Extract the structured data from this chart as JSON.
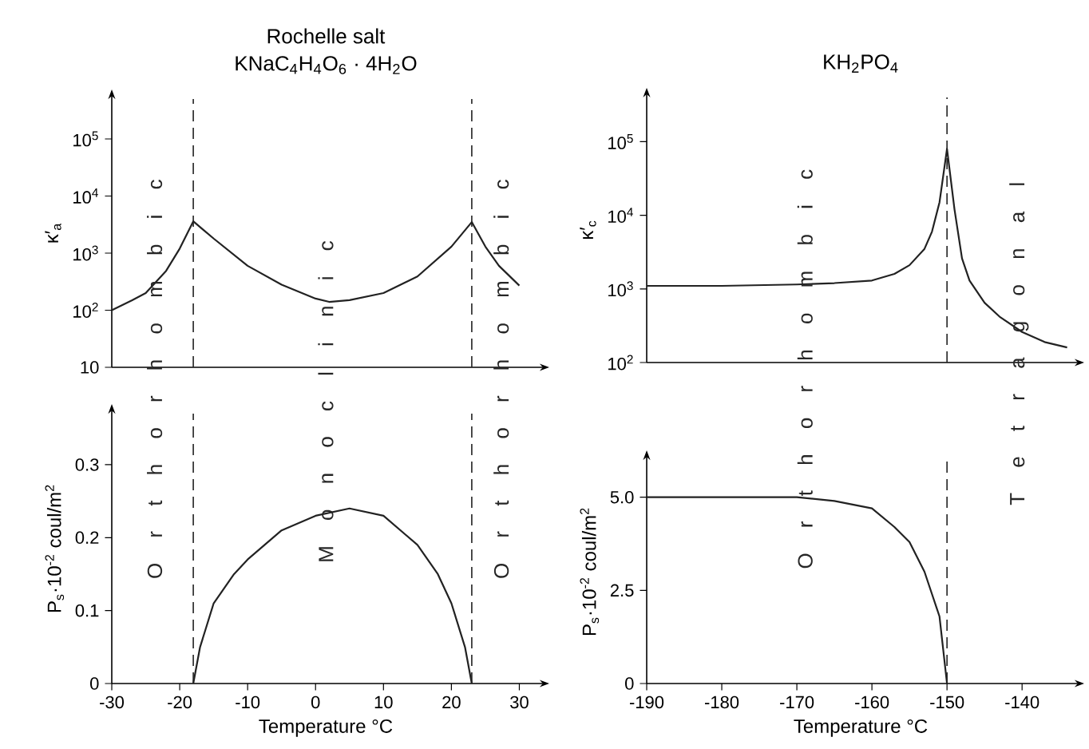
{
  "chart_data": [
    {
      "type": "line",
      "title": "Rochelle salt",
      "subtitle": "KNaC$_{4}$H$_{4}$O$_{6}$ · 4H$_{2}$O",
      "ylabel": "κ′$_{a}$",
      "log": "y",
      "tick_labels": "y",
      "x": [
        -30,
        -27,
        -25,
        -22,
        -20,
        -18,
        -15,
        -10,
        -5,
        0,
        2,
        5,
        10,
        15,
        20,
        23,
        25,
        27,
        30
      ],
      "series": [
        {
          "color": "#222222",
          "values": [
            100,
            150,
            200,
            490,
            1200,
            3600,
            1800,
            600,
            280,
            160,
            140,
            150,
            200,
            390,
            1300,
            3500,
            1300,
            600,
            270
          ]
        }
      ],
      "xlim": [
        -30,
        33
      ],
      "ylim": [
        10,
        500000
      ],
      "yticks": [
        10,
        {
          "value": 100,
          "label": "10$^{2}$"
        },
        {
          "value": 1000,
          "label": "10$^{3}$"
        },
        {
          "value": 10000,
          "label": "10$^{4}$"
        },
        {
          "value": 100000,
          "label": "10$^{5}$"
        }
      ],
      "ref_lines": [
        {
          "axis": "x",
          "value": -18,
          "color": "#222222",
          "line_style": "dashed"
        },
        {
          "axis": "x",
          "value": 23,
          "color": "#222222",
          "line_style": "dashed"
        }
      ],
      "annotations": [
        "O r t h o r h o m b i c",
        "M o n o c l i n i c",
        "O r t h o r h o m b i c"
      ]
    },
    {
      "type": "line",
      "title": "KH$_{2}$PO$_{4}$",
      "ylabel": "κ′$_{c}$",
      "log": "y",
      "tick_labels": "y",
      "x": [
        -190,
        -180,
        -170,
        -165,
        -160,
        -157,
        -155,
        -153,
        -152,
        -151,
        -150,
        -149,
        -148,
        -147,
        -145,
        -143,
        -140,
        -137,
        -134
      ],
      "series": [
        {
          "color": "#222222",
          "values": [
            1100,
            1100,
            1150,
            1200,
            1300,
            1600,
            2100,
            3500,
            6000,
            15000,
            80000,
            12000,
            2600,
            1300,
            650,
            420,
            260,
            190,
            160
          ]
        }
      ],
      "xlim": [
        -190,
        -133
      ],
      "ylim": [
        100,
        400000
      ],
      "yticks": [
        {
          "value": 100,
          "label": "10$^{2}$"
        },
        {
          "value": 1000,
          "label": "10$^{3}$"
        },
        {
          "value": 10000,
          "label": "10$^{4}$"
        },
        {
          "value": 100000,
          "label": "10$^{5}$"
        }
      ],
      "ref_lines": [
        {
          "axis": "x",
          "value": -150,
          "color": "#222222",
          "line_style": "dashed"
        }
      ],
      "annotations": [
        "O r t h o r h o m b i c",
        "T e t r a g o n a l"
      ]
    },
    {
      "type": "line",
      "xlabel": "Temperature °C",
      "ylabel": "P$_{s}$·10$^{-2}$ coul/m$^{2}$",
      "x": [
        -18,
        -17,
        -15,
        -12,
        -10,
        -5,
        0,
        5,
        10,
        15,
        18,
        20,
        22,
        23
      ],
      "series": [
        {
          "color": "#222222",
          "values": [
            0,
            0.05,
            0.11,
            0.15,
            0.17,
            0.21,
            0.23,
            0.24,
            0.23,
            0.19,
            0.15,
            0.11,
            0.05,
            0
          ]
        }
      ],
      "xlim": [
        -30,
        33
      ],
      "ylim": [
        0,
        0.37
      ],
      "xticks": [
        -30,
        -20,
        -10,
        0,
        10,
        20,
        30
      ],
      "yticks": [
        0,
        0.1,
        0.2,
        0.3
      ],
      "ref_lines": [
        {
          "axis": "x",
          "value": -18,
          "color": "#222222",
          "line_style": "dashed"
        },
        {
          "axis": "x",
          "value": 23,
          "color": "#222222",
          "line_style": "dashed"
        }
      ]
    },
    {
      "type": "line",
      "xlabel": "Temperature °C",
      "ylabel": "P$_{s}$·10$^{-2}$ coul/m$^{2}$",
      "x": [
        -190,
        -180,
        -170,
        -165,
        -160,
        -157,
        -155,
        -153,
        -152,
        -151,
        -150
      ],
      "series": [
        {
          "color": "#222222",
          "values": [
            5.0,
            5.0,
            5.0,
            4.9,
            4.7,
            4.2,
            3.8,
            3.0,
            2.4,
            1.8,
            0
          ]
        }
      ],
      "xlim": [
        -190,
        -133
      ],
      "ylim": [
        0,
        6
      ],
      "xticks": [
        -190,
        -180,
        -170,
        -160,
        -150,
        -140
      ],
      "yticks": [
        0,
        2.5,
        {
          "value": 5,
          "label": "5.0"
        }
      ],
      "ref_lines": [
        {
          "axis": "x",
          "value": -150,
          "color": "#222222",
          "line_style": "dashed"
        }
      ]
    }
  ]
}
